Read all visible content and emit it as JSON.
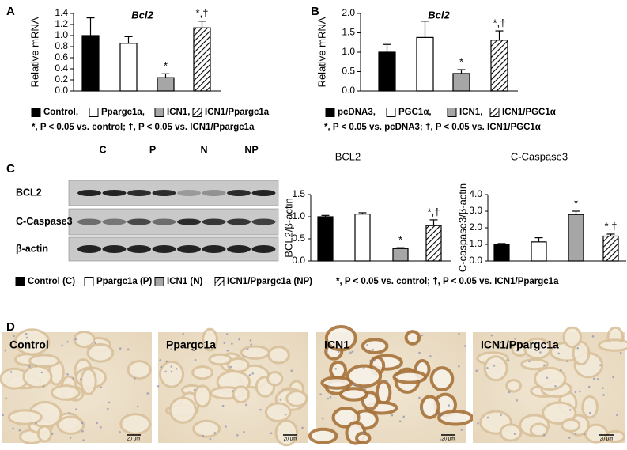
{
  "panel_labels": [
    "A",
    "B",
    "C",
    "D"
  ],
  "chart_data": [
    {
      "type": "bar",
      "title": "Bcl2",
      "ylabel": "Relative mRNA",
      "categories": [
        "Control,",
        "Ppargc1a,",
        "ICN1,",
        "ICN1/Ppargc1a"
      ],
      "values": [
        1.0,
        0.86,
        0.24,
        1.14
      ],
      "errors": [
        0.32,
        0.12,
        0.07,
        0.12
      ],
      "colors": [
        "#000000",
        "#ffffff",
        "#a6a6a6",
        "#ffffff"
      ],
      "hatched": [
        false,
        false,
        false,
        true
      ],
      "annotations": [
        {
          "index": 2,
          "text": "*"
        },
        {
          "index": 3,
          "text": "*,†"
        }
      ],
      "ylim": [
        0,
        1.4
      ],
      "yticks": [
        {
          "value": 0,
          "label": "0.0"
        },
        0.2,
        0.4,
        0.6,
        0.8,
        {
          "value": 1,
          "label": "1.0"
        },
        1.2,
        1.4
      ],
      "note": "*, P < 0.05 vs. control; †, P < 0.05 vs. ICN1/Ppargc1a"
    },
    {
      "type": "bar",
      "title": "Bcl2",
      "ylabel": "Relative mRNA",
      "categories": [
        "pcDNA3,",
        "PGC1α,",
        "ICN1,",
        "ICN1/PGC1α"
      ],
      "values": [
        1.0,
        1.38,
        0.45,
        1.31
      ],
      "errors": [
        0.2,
        0.42,
        0.1,
        0.24
      ],
      "colors": [
        "#000000",
        "#ffffff",
        "#a6a6a6",
        "#ffffff"
      ],
      "hatched": [
        false,
        false,
        false,
        true
      ],
      "annotations": [
        {
          "index": 2,
          "text": "*"
        },
        {
          "index": 3,
          "text": "*,†"
        }
      ],
      "ylim": [
        0,
        2.0
      ],
      "yticks": [
        {
          "value": 0,
          "label": "0.0"
        },
        0.5,
        {
          "value": 1,
          "label": "1.0"
        },
        1.5,
        {
          "value": 2,
          "label": "2.0"
        }
      ],
      "note": "*, P < 0.05 vs. pcDNA3; †, P < 0.05 vs. ICN1/PGC1α"
    },
    {
      "type": "bar",
      "title": "BCL2",
      "ylabel": "BCL2/β-actin",
      "categories": [
        "Control (C)",
        "Ppargc1a (P)",
        "ICN1 (N)",
        "ICN1/Ppargc1a (NP)"
      ],
      "values": [
        1.0,
        1.06,
        0.28,
        0.8
      ],
      "errors": [
        0.03,
        0.03,
        0.02,
        0.13
      ],
      "colors": [
        "#000000",
        "#ffffff",
        "#a6a6a6",
        "#ffffff"
      ],
      "hatched": [
        false,
        false,
        false,
        true
      ],
      "annotations": [
        {
          "index": 2,
          "text": "*"
        },
        {
          "index": 3,
          "text": "*,†"
        }
      ],
      "ylim": [
        0,
        1.5
      ],
      "yticks": [
        {
          "value": 0,
          "label": "0.0"
        },
        0.5,
        {
          "value": 1,
          "label": "1.0"
        },
        1.5
      ],
      "note": "*, P < 0.05 vs. control; †, P < 0.05 vs. ICN1/Ppargc1a"
    },
    {
      "type": "bar",
      "title": "C-Caspase3",
      "ylabel": "C-caspase3/β-actin",
      "values": [
        1.0,
        1.15,
        2.8,
        1.5
      ],
      "errors": [
        0.05,
        0.25,
        0.2,
        0.12
      ],
      "colors": [
        "#000000",
        "#ffffff",
        "#a6a6a6",
        "#ffffff"
      ],
      "hatched": [
        false,
        false,
        false,
        true
      ],
      "annotations": [
        {
          "index": 2,
          "text": "*"
        },
        {
          "index": 3,
          "text": "*,†"
        }
      ],
      "ylim": [
        0,
        4.0
      ],
      "yticks": [
        {
          "value": 0,
          "label": "0.0"
        },
        {
          "value": 1,
          "label": "1.0"
        },
        {
          "value": 2,
          "label": "2.0"
        },
        {
          "value": 3,
          "label": "3.0"
        },
        {
          "value": 4,
          "label": "4.0"
        }
      ]
    }
  ],
  "blot": {
    "lanes": [
      "C",
      "P",
      "N",
      "NP"
    ],
    "rows": [
      "BCL2",
      "C-Caspase3",
      "β-actin"
    ]
  },
  "histology": {
    "labels": [
      "Control",
      "Ppargc1a",
      "ICN1",
      "ICN1/Ppargc1a"
    ],
    "scale_bars": [
      "20 μm",
      "20 μm",
      "20 μm",
      "20 μm"
    ]
  }
}
